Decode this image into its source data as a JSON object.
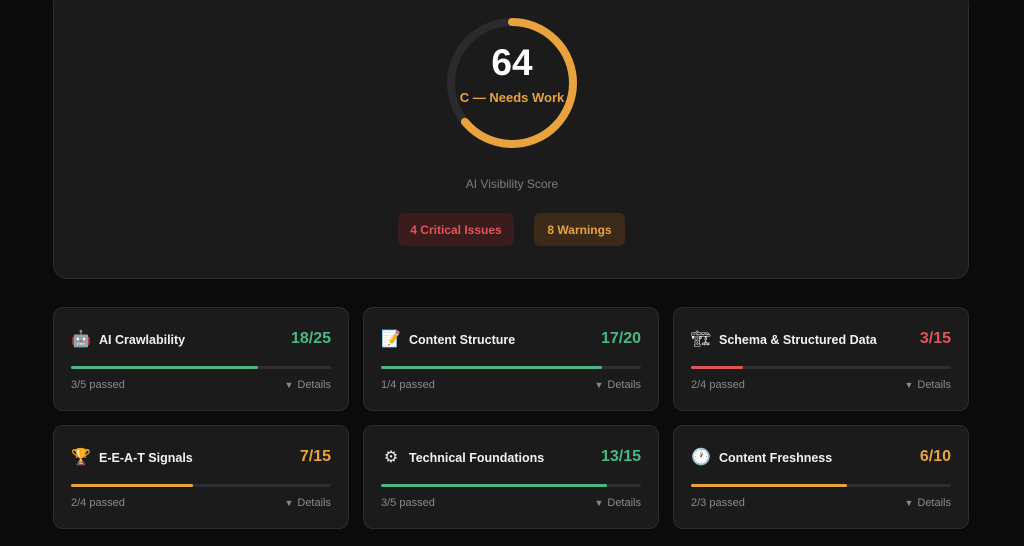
{
  "score": {
    "value": "64",
    "value_fraction": 0.64,
    "grade": "C — Needs Work",
    "label": "AI Visibility Score",
    "gauge_color": "#e8a33c",
    "critical_badge": "4 Critical Issues",
    "warning_badge": "8 Warnings"
  },
  "colors": {
    "good": "#4cb782",
    "warn": "#e8a33c",
    "bad": "#e0555a"
  },
  "cards": [
    {
      "icon": "robot-icon",
      "glyph": "🤖",
      "title": "AI Crawlability",
      "score": "18/25",
      "fraction": 0.72,
      "status": "good",
      "passed": "3/5 passed",
      "details": "Details"
    },
    {
      "icon": "memo-icon",
      "glyph": "📝",
      "title": "Content Structure",
      "score": "17/20",
      "fraction": 0.85,
      "status": "good",
      "passed": "1/4 passed",
      "details": "Details"
    },
    {
      "icon": "construction-icon",
      "glyph": "🏗",
      "title": "Schema & Structured Data",
      "score": "3/15",
      "fraction": 0.2,
      "status": "bad",
      "passed": "2/4 passed",
      "details": "Details"
    },
    {
      "icon": "trophy-icon",
      "glyph": "🏆",
      "title": "E-E-A-T Signals",
      "score": "7/15",
      "fraction": 0.47,
      "status": "warn",
      "passed": "2/4 passed",
      "details": "Details"
    },
    {
      "icon": "gear-icon",
      "glyph": "⚙",
      "title": "Technical Foundations",
      "score": "13/15",
      "fraction": 0.87,
      "status": "good",
      "passed": "3/5 passed",
      "details": "Details"
    },
    {
      "icon": "clock-icon",
      "glyph": "🕐",
      "title": "Content Freshness",
      "score": "6/10",
      "fraction": 0.6,
      "status": "warn",
      "passed": "2/3 passed",
      "details": "Details"
    }
  ]
}
